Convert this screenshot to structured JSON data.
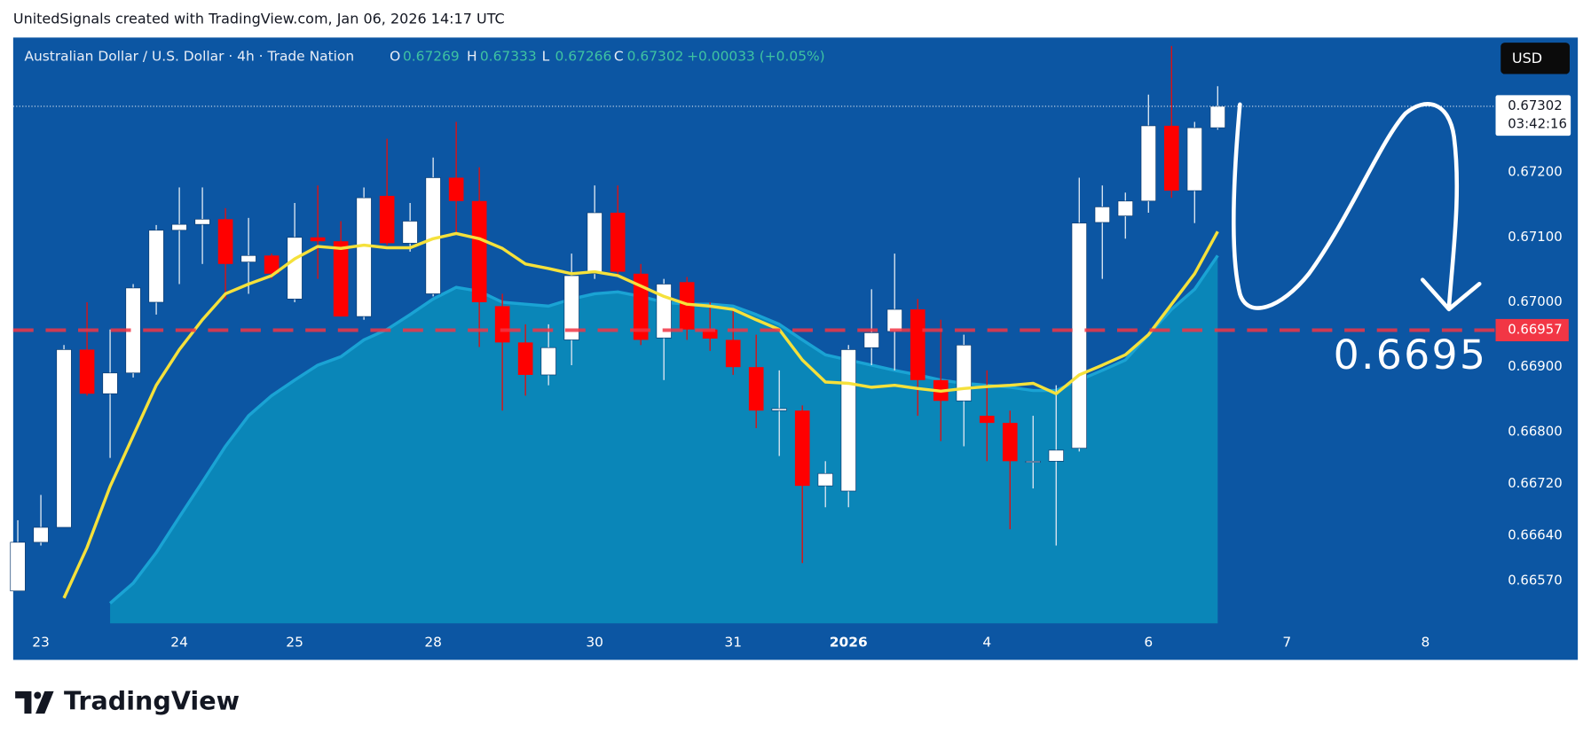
{
  "header": {
    "attribution": "UnitedSignals created with TradingView.com, Jan 06, 2026 14:17 UTC"
  },
  "chart_data": {
    "type": "candlestick",
    "title": "Australian Dollar / U.S. Dollar · 4h · Trade Nation",
    "ohlc_legend": [
      {
        "key": "O",
        "value": 0.67269
      },
      {
        "key": "H",
        "value": 0.67333
      },
      {
        "key": "L",
        "value": 0.67266
      },
      {
        "key": "C",
        "value": 0.67302
      }
    ],
    "change_label": "+0.00033 (+0.05%)",
    "currency": "USD",
    "up_color": "#ffffff",
    "down_color": "#ff0000",
    "candles": {
      "open": [
        0.66555,
        0.6663,
        0.66653,
        0.66927,
        0.66859,
        0.66891,
        0.67,
        0.67111,
        0.6712,
        0.67128,
        0.67062,
        0.67072,
        0.67005,
        0.671,
        0.67094,
        0.66978,
        0.67164,
        0.67091,
        0.67013,
        0.67192,
        0.67156,
        0.66994,
        0.66938,
        0.66888,
        0.66942,
        0.67044,
        0.67138,
        0.67044,
        0.66945,
        0.67031,
        0.66958,
        0.66942,
        0.669,
        0.66833,
        0.66833,
        0.66717,
        0.66709,
        0.6693,
        0.66955,
        0.66989,
        0.6688,
        0.66848,
        0.66825,
        0.66814,
        0.66755,
        0.66755,
        0.66775,
        0.67123,
        0.67133,
        0.67156,
        0.67272,
        0.67172,
        0.67269
      ],
      "high": [
        0.66664,
        0.66703,
        0.66934,
        0.67,
        0.66958,
        0.67028,
        0.67119,
        0.67177,
        0.67177,
        0.67145,
        0.6713,
        0.67075,
        0.67153,
        0.6718,
        0.67125,
        0.67177,
        0.67252,
        0.67153,
        0.67223,
        0.67278,
        0.67208,
        0.67013,
        0.66966,
        0.66966,
        0.67075,
        0.6718,
        0.6718,
        0.67059,
        0.67036,
        0.67039,
        0.67,
        0.66989,
        0.6695,
        0.66895,
        0.66841,
        0.66755,
        0.66934,
        0.6702,
        0.67075,
        0.67005,
        0.66973,
        0.6695,
        0.66895,
        0.66833,
        0.66825,
        0.66872,
        0.67192,
        0.6718,
        0.67169,
        0.6732,
        0.67395,
        0.67278,
        0.67333
      ],
      "low": [
        0.66555,
        0.66625,
        0.66653,
        0.66856,
        0.6676,
        0.66884,
        0.66981,
        0.67028,
        0.67059,
        0.67005,
        0.67013,
        0.67036,
        0.67,
        0.67036,
        0.66978,
        0.66973,
        0.67088,
        0.67078,
        0.67009,
        0.67106,
        0.66931,
        0.66833,
        0.66856,
        0.66872,
        0.66903,
        0.67036,
        0.67041,
        0.66934,
        0.6688,
        0.66942,
        0.66925,
        0.66888,
        0.66806,
        0.66763,
        0.66598,
        0.66684,
        0.66684,
        0.66903,
        0.66895,
        0.66825,
        0.66786,
        0.66778,
        0.66755,
        0.6665,
        0.66713,
        0.66625,
        0.6677,
        0.67036,
        0.67098,
        0.67138,
        0.67161,
        0.67122,
        0.67266
      ],
      "close": [
        0.6663,
        0.66653,
        0.66927,
        0.66859,
        0.66891,
        0.67022,
        0.67111,
        0.6712,
        0.67128,
        0.67059,
        0.67072,
        0.67044,
        0.671,
        0.67094,
        0.66978,
        0.67161,
        0.67091,
        0.67125,
        0.67192,
        0.67156,
        0.67,
        0.66938,
        0.66888,
        0.6693,
        0.67041,
        0.67138,
        0.67047,
        0.66942,
        0.67028,
        0.66958,
        0.66944,
        0.669,
        0.66833,
        0.66836,
        0.66717,
        0.66736,
        0.66927,
        0.66953,
        0.66989,
        0.6688,
        0.66848,
        0.66934,
        0.66814,
        0.66755,
        0.66755,
        0.66772,
        0.67122,
        0.67147,
        0.67156,
        0.67272,
        0.67172,
        0.67269,
        0.67302
      ]
    },
    "series": [
      {
        "color": "#1aa3d4",
        "fill": "#0a86b8",
        "values": [
          null,
          null,
          null,
          null,
          0.66536,
          0.66567,
          0.66614,
          0.66669,
          0.66723,
          0.66778,
          0.66825,
          0.66856,
          0.6688,
          0.66903,
          0.66916,
          0.66942,
          0.66958,
          0.66981,
          0.67005,
          0.67023,
          0.67017,
          0.67,
          0.66997,
          0.66994,
          0.67005,
          0.67013,
          0.67016,
          0.67009,
          0.67,
          0.66997,
          0.66997,
          0.66994,
          0.66981,
          0.66966,
          0.66942,
          0.66919,
          0.66911,
          0.66903,
          0.66895,
          0.66888,
          0.6688,
          0.66875,
          0.66872,
          0.66869,
          0.66864,
          0.66864,
          0.6688,
          0.66895,
          0.66911,
          0.6695,
          0.66989,
          0.6702,
          0.67072
        ]
      },
      {
        "color": "#f5e13b",
        "values": [
          null,
          null,
          0.66544,
          0.66622,
          0.66716,
          0.66794,
          0.66872,
          0.66927,
          0.66973,
          0.67013,
          0.67028,
          0.67041,
          0.67067,
          0.67086,
          0.67083,
          0.67088,
          0.67084,
          0.67084,
          0.67098,
          0.67106,
          0.67098,
          0.67083,
          0.67059,
          0.67052,
          0.67044,
          0.67047,
          0.67041,
          0.67025,
          0.67009,
          0.66997,
          0.66994,
          0.66989,
          0.66973,
          0.66958,
          0.66911,
          0.66877,
          0.66875,
          0.66869,
          0.66872,
          0.66867,
          0.66863,
          0.66867,
          0.6687,
          0.66872,
          0.66875,
          0.66859,
          0.66888,
          0.66903,
          0.66919,
          0.6695,
          0.66997,
          0.67044,
          0.67109
        ]
      }
    ],
    "xlim": [
      -0.2,
      64
    ],
    "ylim": [
      0.66505,
      0.67408
    ],
    "xticks": [
      {
        "value": 1,
        "label": "23"
      },
      {
        "value": 7,
        "label": "24"
      },
      {
        "value": 12,
        "label": "25"
      },
      {
        "value": 18,
        "label": "28"
      },
      {
        "value": 25,
        "label": "30"
      },
      {
        "value": 31,
        "label": "31"
      },
      {
        "value": 36,
        "label": "2026",
        "bold": true
      },
      {
        "value": 42,
        "label": "4"
      },
      {
        "value": 49,
        "label": "6"
      },
      {
        "value": 55,
        "label": "7"
      },
      {
        "value": 61,
        "label": "8"
      }
    ],
    "yticks": [
      {
        "value": 0.672,
        "label": "0.67200"
      },
      {
        "value": 0.671,
        "label": "0.67100"
      },
      {
        "value": 0.67,
        "label": "0.67000"
      },
      {
        "value": 0.669,
        "label": "0.66900"
      },
      {
        "value": 0.668,
        "label": "0.66800"
      },
      {
        "value": 0.6672,
        "label": "0.66720"
      },
      {
        "value": 0.6664,
        "label": "0.66640"
      },
      {
        "value": 0.6657,
        "label": "0.66570"
      }
    ],
    "grid": false,
    "hline": {
      "value": 0.66957,
      "color": "#f23645"
    },
    "last_price": {
      "value": 0.67302,
      "countdown": "03:42:16"
    },
    "annotation": "0.6695"
  },
  "footer": {
    "brand": "TradingView"
  }
}
